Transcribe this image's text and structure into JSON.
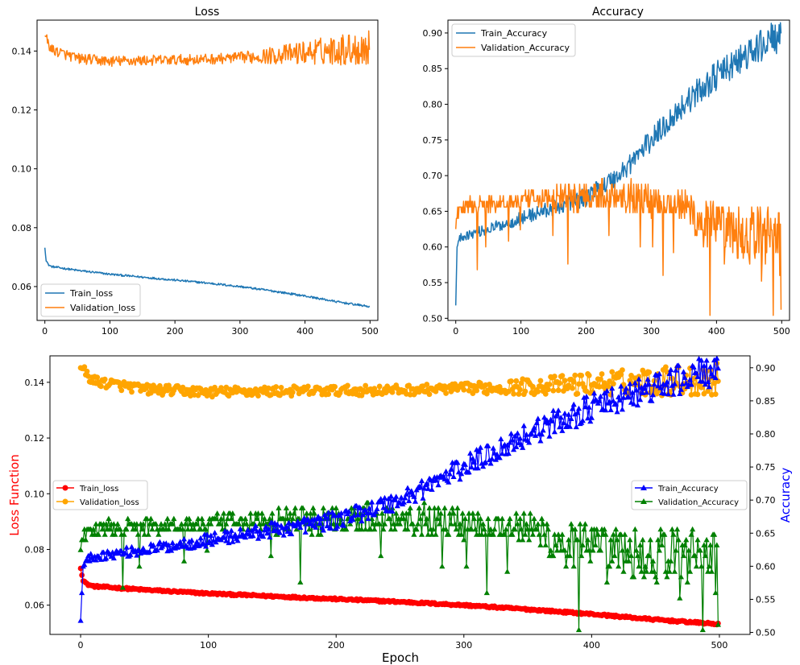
{
  "chart_data": [
    {
      "type": "line",
      "title": "Loss",
      "xlabel": "",
      "ylabel": "",
      "xlim": [
        -12,
        512
      ],
      "ylim": [
        0.0485,
        0.1505
      ],
      "xticks": [
        0,
        100,
        200,
        300,
        400,
        500
      ],
      "yticks": [
        0.06,
        0.08,
        0.1,
        0.12,
        0.14
      ],
      "ytick_labels": [
        "0.06",
        "0.08",
        "0.10",
        "0.12",
        "0.14"
      ],
      "legend": "bottom-left",
      "epochs": 500,
      "series": [
        {
          "name": "Train_loss",
          "color": "#1f77b4",
          "x": [
            0,
            2,
            5,
            10,
            50,
            100,
            150,
            200,
            250,
            300,
            350,
            400,
            450,
            499
          ],
          "values": [
            0.0732,
            0.069,
            0.0675,
            0.0668,
            0.0655,
            0.0642,
            0.0632,
            0.0622,
            0.0612,
            0.06,
            0.0585,
            0.0568,
            0.0548,
            0.0532
          ]
        },
        {
          "name": "Validation_loss",
          "color": "#ff7f0e",
          "x": [
            0,
            10,
            50,
            100,
            150,
            200,
            250,
            300,
            350,
            400,
            450,
            499
          ],
          "values": [
            0.1452,
            0.1405,
            0.1375,
            0.1365,
            0.1368,
            0.137,
            0.1372,
            0.1378,
            0.1385,
            0.1395,
            0.1405,
            0.141
          ]
        }
      ]
    },
    {
      "type": "line",
      "title": "Accuracy",
      "xlabel": "",
      "ylabel": "",
      "xlim": [
        -12,
        512
      ],
      "ylim": [
        0.497,
        0.918
      ],
      "xticks": [
        0,
        100,
        200,
        300,
        400,
        500
      ],
      "yticks": [
        0.5,
        0.55,
        0.6,
        0.65,
        0.7,
        0.75,
        0.8,
        0.85,
        0.9
      ],
      "ytick_labels": [
        "0.50",
        "0.55",
        "0.60",
        "0.65",
        "0.70",
        "0.75",
        "0.80",
        "0.85",
        "0.90"
      ],
      "legend": "top-left",
      "series": [
        {
          "name": "Train_Accuracy",
          "color": "#1f77b4",
          "x": [
            0,
            1,
            2,
            5,
            10,
            50,
            100,
            150,
            200,
            250,
            300,
            350,
            400,
            450,
            490,
            499
          ],
          "values": [
            0.518,
            0.56,
            0.6,
            0.61,
            0.615,
            0.625,
            0.64,
            0.655,
            0.67,
            0.7,
            0.75,
            0.8,
            0.84,
            0.87,
            0.895,
            0.89
          ]
        },
        {
          "name": "Validation_Accuracy",
          "color": "#ff7f0e",
          "x": [
            0,
            5,
            50,
            100,
            150,
            200,
            250,
            300,
            350,
            370,
            400,
            450,
            499
          ],
          "values": [
            0.625,
            0.655,
            0.66,
            0.665,
            0.668,
            0.672,
            0.675,
            0.665,
            0.66,
            0.64,
            0.62,
            0.615,
            0.625
          ]
        }
      ]
    },
    {
      "type": "line",
      "title": "",
      "xlabel": "Epoch",
      "ylabel_left": "Loss Function",
      "ylabel_right": "Accuracy",
      "ylabel_left_color": "#ff0000",
      "ylabel_right_color": "#0000ff",
      "xlim": [
        -24,
        524
      ],
      "ylim_left": [
        0.0495,
        0.1495
      ],
      "ylim_right": [
        0.497,
        0.918
      ],
      "xticks": [
        0,
        100,
        200,
        300,
        400,
        500
      ],
      "yticks_left": [
        0.06,
        0.08,
        0.1,
        0.12,
        0.14
      ],
      "ytick_labels_left": [
        "0.06",
        "0.08",
        "0.10",
        "0.12",
        "0.14"
      ],
      "yticks_right": [
        0.5,
        0.55,
        0.6,
        0.65,
        0.7,
        0.75,
        0.8,
        0.85,
        0.9
      ],
      "ytick_labels_right": [
        "0.50",
        "0.55",
        "0.60",
        "0.65",
        "0.70",
        "0.75",
        "0.80",
        "0.85",
        "0.90"
      ],
      "legend_left": "center-left",
      "legend_right": "center-right",
      "series": [
        {
          "name": "Train_loss",
          "axis": "left",
          "marker": "o",
          "color": "#ff0000",
          "ref": "0.0"
        },
        {
          "name": "Validation_loss",
          "axis": "left",
          "marker": "o",
          "color": "#ffa500",
          "ref": "0.1"
        },
        {
          "name": "Train_Accuracy",
          "axis": "right",
          "marker": "^",
          "color": "#0000ff",
          "ref": "1.0"
        },
        {
          "name": "Validation_Accuracy",
          "axis": "right",
          "marker": "^",
          "color": "#008000",
          "ref": "1.1"
        }
      ]
    }
  ]
}
